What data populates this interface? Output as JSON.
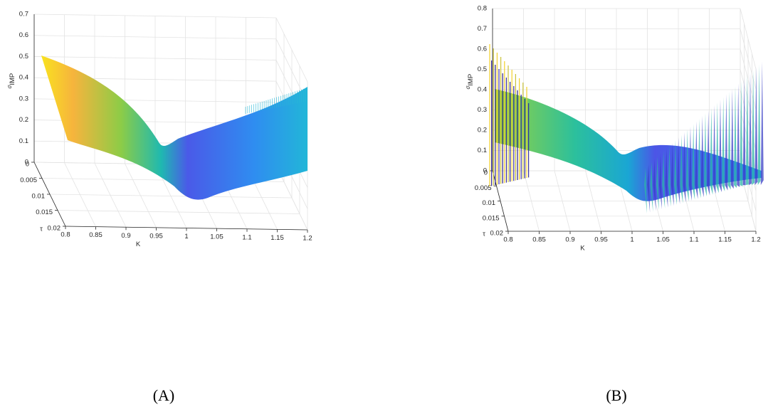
{
  "chart_data": [
    {
      "type": "surface3d",
      "caption": "(A)",
      "xlabel": "K",
      "ylabel": "τ",
      "zlabel": {
        "symbol": "σ",
        "subscript": "IMP"
      },
      "xlim": [
        0.8,
        1.2
      ],
      "xticks": [
        0.8,
        0.85,
        0.9,
        0.95,
        1,
        1.05,
        1.1,
        1.15,
        1.2
      ],
      "ylim": [
        0,
        0.02
      ],
      "yticks": [
        0,
        0.005,
        0.01,
        0.015,
        0.02
      ],
      "zlim": [
        0,
        0.7
      ],
      "zticks": [
        0,
        0.1,
        0.2,
        0.3,
        0.4,
        0.5,
        0.6,
        0.7
      ],
      "grid": true
    },
    {
      "type": "surface3d",
      "caption": "(B)",
      "xlabel": "K",
      "ylabel": "τ",
      "zlabel": {
        "symbol": "σ",
        "subscript": "IMP"
      },
      "xlim": [
        0.8,
        1.2
      ],
      "xticks": [
        0.8,
        0.85,
        0.9,
        0.95,
        1,
        1.05,
        1.1,
        1.15,
        1.2
      ],
      "ylim": [
        0,
        0.02
      ],
      "yticks": [
        0,
        0.005,
        0.01,
        0.015,
        0.02
      ],
      "zlim": [
        0,
        0.8
      ],
      "zticks": [
        0,
        0.1,
        0.2,
        0.3,
        0.4,
        0.5,
        0.6,
        0.7,
        0.8
      ],
      "grid": true
    }
  ]
}
